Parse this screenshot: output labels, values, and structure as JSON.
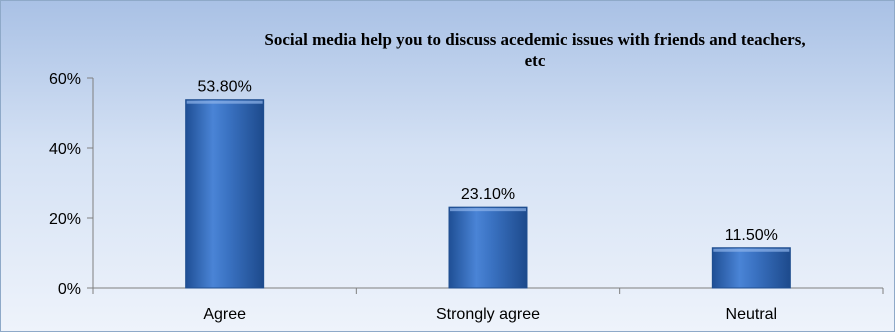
{
  "chart_data": {
    "type": "bar",
    "title_lines": [
      "Social media help you to discuss acedemic issues with friends and teachers,",
      "etc"
    ],
    "categories": [
      "Agree",
      "Strongly agree",
      "Neutral"
    ],
    "values": [
      53.8,
      23.1,
      11.5
    ],
    "data_labels": [
      "53.80%",
      "23.10%",
      "11.50%"
    ],
    "ylim": [
      0,
      60
    ],
    "yticks": [
      0,
      20,
      40,
      60
    ],
    "ytick_labels": [
      "0%",
      "20%",
      "40%",
      "60%"
    ],
    "grid": false,
    "legend": "none",
    "bar_color": "#3f74c4",
    "bar_edge_color": "#1f4e8f"
  }
}
